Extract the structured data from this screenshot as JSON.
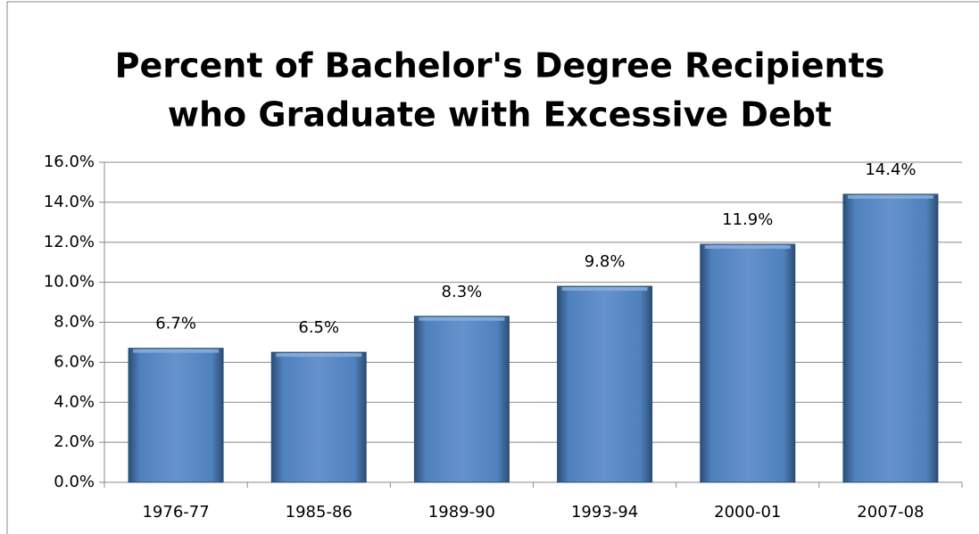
{
  "chart_data": {
    "type": "bar",
    "title": [
      "Percent of Bachelor's Degree Recipients",
      "who Graduate with Excessive Debt"
    ],
    "categories": [
      "1976-77",
      "1985-86",
      "1989-90",
      "1993-94",
      "2000-01",
      "2007-08"
    ],
    "values": [
      6.7,
      6.5,
      8.3,
      9.8,
      11.9,
      14.4
    ],
    "value_labels": [
      "6.7%",
      "6.5%",
      "8.3%",
      "9.8%",
      "11.9%",
      "14.4%"
    ],
    "color": "#4f81bd",
    "ylim": [
      0,
      16
    ],
    "yticks": [
      {
        "value": 0,
        "label": "0.0%"
      },
      {
        "value": 2,
        "label": "2.0%"
      },
      {
        "value": 4,
        "label": "4.0%"
      },
      {
        "value": 6,
        "label": "6.0%"
      },
      {
        "value": 8,
        "label": "8.0%"
      },
      {
        "value": 10,
        "label": "10.0%"
      },
      {
        "value": 12,
        "label": "12.0%"
      },
      {
        "value": 14,
        "label": "14.0%"
      },
      {
        "value": 16,
        "label": "16.0%"
      }
    ],
    "grid": true
  }
}
